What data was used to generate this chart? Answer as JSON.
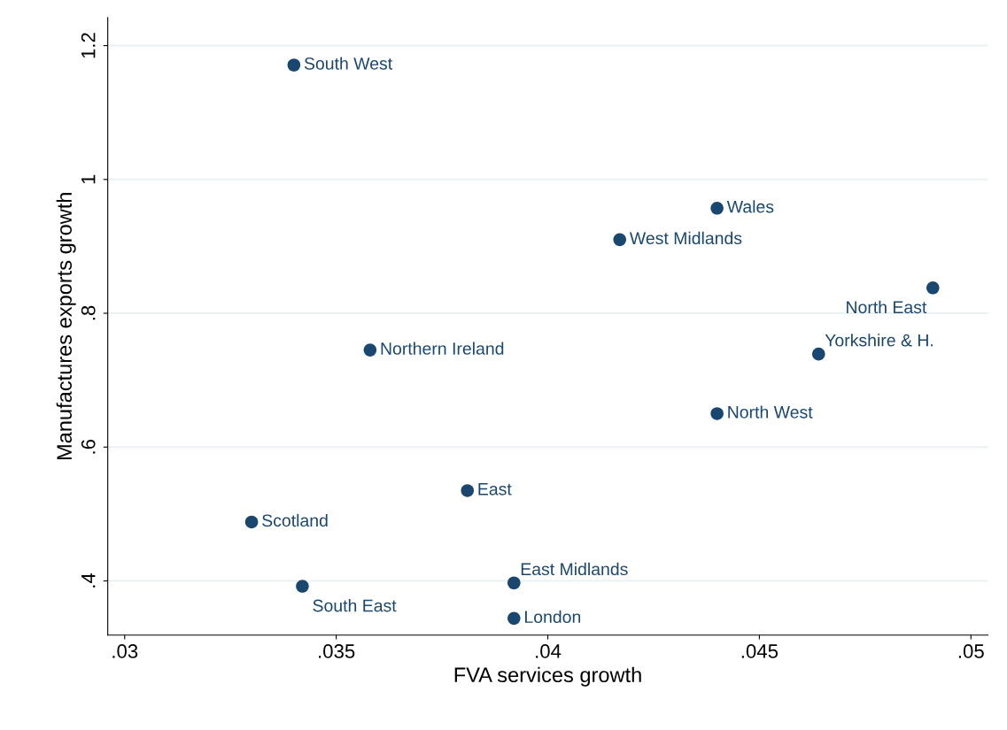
{
  "chart_data": {
    "type": "scatter",
    "xlabel": "FVA services growth",
    "ylabel": "Manufactures exports growth",
    "xlim": [
      0.0296,
      0.0504
    ],
    "ylim": [
      0.319,
      1.242
    ],
    "xticks": [
      {
        "value": 0.03,
        "label": ".03"
      },
      {
        "value": 0.035,
        "label": ".035"
      },
      {
        "value": 0.04,
        "label": ".04"
      },
      {
        "value": 0.045,
        "label": ".045"
      },
      {
        "value": 0.05,
        "label": ".05"
      }
    ],
    "yticks": [
      {
        "value": 0.4,
        "label": ".4"
      },
      {
        "value": 0.6,
        "label": ".6"
      },
      {
        "value": 0.8,
        "label": ".8"
      },
      {
        "value": 1,
        "label": "1"
      },
      {
        "value": 1.2,
        "label": "1.2"
      }
    ],
    "grid": "y",
    "marker": "circle",
    "legend": false,
    "series": [
      {
        "name": "South West",
        "color": "#1a476f",
        "x": [
          0.034
        ],
        "values": [
          1.171
        ]
      },
      {
        "name": "Wales",
        "color": "#1a476f",
        "x": [
          0.044
        ],
        "values": [
          0.957
        ]
      },
      {
        "name": "West Midlands",
        "color": "#1a476f",
        "x": [
          0.0417
        ],
        "values": [
          0.91
        ]
      },
      {
        "name": "North East",
        "color": "#1a476f",
        "x": [
          0.0491
        ],
        "values": [
          0.838
        ]
      },
      {
        "name": "Northern Ireland",
        "color": "#1a476f",
        "x": [
          0.0358
        ],
        "values": [
          0.745
        ]
      },
      {
        "name": "Yorkshire & H.",
        "color": "#1a476f",
        "x": [
          0.0464
        ],
        "values": [
          0.739
        ]
      },
      {
        "name": "North West",
        "color": "#1a476f",
        "x": [
          0.044
        ],
        "values": [
          0.65
        ]
      },
      {
        "name": "East",
        "color": "#1a476f",
        "x": [
          0.0381
        ],
        "values": [
          0.535
        ]
      },
      {
        "name": "Scotland",
        "color": "#1a476f",
        "x": [
          0.033
        ],
        "values": [
          0.488
        ]
      },
      {
        "name": "East Midlands",
        "color": "#1a476f",
        "x": [
          0.0392
        ],
        "values": [
          0.397
        ]
      },
      {
        "name": "South East",
        "color": "#1a476f",
        "x": [
          0.0342
        ],
        "values": [
          0.392
        ]
      },
      {
        "name": "London",
        "color": "#1a476f",
        "x": [
          0.0392
        ],
        "values": [
          0.344
        ]
      }
    ]
  }
}
